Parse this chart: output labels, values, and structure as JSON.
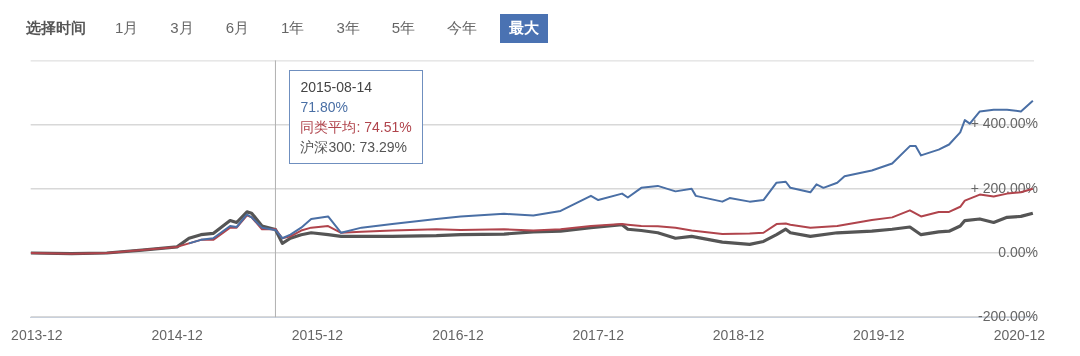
{
  "chart_data": {
    "type": "line",
    "title": "选择时间",
    "annotations": [
      "1月",
      "3月",
      "6月",
      "1年",
      "3年",
      "5年",
      "今年",
      "最大",
      {
        "text": "2015-08-14",
        "x": "2015-08-14"
      },
      "71.80%",
      "同类平均: 74.51%",
      "沪深300: 73.29%"
    ],
    "xlim": [
      "2013-11-15",
      "2021-01-08"
    ],
    "xticks": [
      "2013-12",
      "2014-12",
      "2015-12",
      "2016-12",
      "2017-12",
      "2018-12",
      "2019-12",
      "2020-12"
    ],
    "ylim": [
      -200,
      600
    ],
    "yticks": [
      {
        "value": -200,
        "label": "-200.00%"
      },
      {
        "value": 0,
        "label": "0.00%"
      },
      {
        "value": 200,
        "label": "+ 200.00%"
      },
      {
        "value": 400,
        "label": "+ 400.00%"
      }
    ],
    "grid": "y",
    "legend": false,
    "marker": "none",
    "line_style": "solid",
    "ref_lines": [
      {
        "axis": "x",
        "value": "2015-08-14",
        "color": "#b0b0b0"
      }
    ],
    "series": [
      {
        "color": "#4a6fa5",
        "x": [
          "2015-01-01",
          "2015-02-01",
          "2015-03-05",
          "2015-04-18",
          "2015-05-05",
          "2015-06-01",
          "2015-06-13",
          "2015-07-10",
          "2015-08-14",
          "2015-09-01",
          "2015-09-22",
          "2015-10-20",
          "2015-11-15",
          "2015-12-29",
          "2016-02-01",
          "2016-03-25",
          "2016-06-13",
          "2016-10-06",
          "2016-12-08",
          "2017-03-31",
          "2017-06-15",
          "2017-08-25",
          "2017-11-12",
          "2017-12-01",
          "2018-02-01",
          "2018-02-16",
          "2018-03-23",
          "2018-05-05",
          "2018-06-20",
          "2018-08-01",
          "2018-08-12",
          "2018-10-20",
          "2018-11-08",
          "2018-12-30",
          "2019-02-04",
          "2019-03-10",
          "2019-04-03",
          "2019-04-15",
          "2019-06-06",
          "2019-06-22",
          "2019-07-10",
          "2019-08-15",
          "2019-09-03",
          "2019-11-13",
          "2020-01-05",
          "2020-02-20",
          "2020-03-06",
          "2020-03-20",
          "2020-05-05",
          "2020-06-01",
          "2020-06-30",
          "2020-07-12",
          "2020-07-25",
          "2020-08-20",
          "2020-09-25",
          "2020-10-30",
          "2020-12-05",
          "2021-01-05"
        ],
        "values": [
          30,
          41,
          46,
          84,
          81,
          120,
          111,
          79,
          71.8,
          46,
          57,
          79,
          106,
          114,
          63,
          79,
          90,
          106,
          114,
          122,
          117,
          131,
          178,
          165,
          185,
          173,
          203,
          209,
          192,
          200,
          178,
          160,
          171,
          160,
          165,
          219,
          222,
          203,
          189,
          214,
          203,
          219,
          239,
          257,
          279,
          333,
          333,
          304,
          322,
          338,
          376,
          414,
          403,
          441,
          446,
          446,
          441,
          474
        ]
      },
      {
        "color": "#b0444c",
        "x": [
          "2013-11-15",
          "2014-03-01",
          "2014-06-01",
          "2014-09-01",
          "2014-12-01",
          "2015-01-01",
          "2015-02-01",
          "2015-03-05",
          "2015-04-18",
          "2015-05-05",
          "2015-06-01",
          "2015-06-13",
          "2015-07-10",
          "2015-08-14",
          "2015-09-01",
          "2015-09-22",
          "2015-10-20",
          "2015-11-15",
          "2015-12-29",
          "2016-02-01",
          "2016-03-25",
          "2016-06-13",
          "2016-10-06",
          "2016-12-08",
          "2017-03-31",
          "2017-06-15",
          "2017-08-25",
          "2017-11-12",
          "2018-02-01",
          "2018-02-16",
          "2018-03-23",
          "2018-05-05",
          "2018-06-20",
          "2018-08-01",
          "2018-10-20",
          "2018-12-30",
          "2019-02-04",
          "2019-03-10",
          "2019-04-03",
          "2019-04-15",
          "2019-06-06",
          "2019-08-15",
          "2019-11-13",
          "2020-01-05",
          "2020-02-20",
          "2020-03-20",
          "2020-05-05",
          "2020-06-01",
          "2020-06-30",
          "2020-07-12",
          "2020-08-20",
          "2020-09-25",
          "2020-10-30",
          "2020-12-05",
          "2021-01-05"
        ],
        "values": [
          0,
          -2,
          0,
          9,
          19,
          30,
          41,
          41,
          79,
          79,
          117,
          111,
          74,
          74.51,
          46,
          52,
          70,
          79,
          84,
          63,
          66,
          70,
          74,
          72,
          74,
          70,
          74,
          84,
          90,
          88,
          84,
          83,
          79,
          70,
          59,
          61,
          63,
          90,
          92,
          88,
          79,
          84,
          103,
          111,
          133,
          114,
          128,
          128,
          144,
          163,
          182,
          176,
          185,
          189,
          200
        ]
      },
      {
        "color": "#555555",
        "x": [
          "2013-11-15",
          "2014-03-01",
          "2014-06-01",
          "2014-09-01",
          "2014-12-01",
          "2015-01-01",
          "2015-02-01",
          "2015-03-05",
          "2015-04-18",
          "2015-05-05",
          "2015-06-01",
          "2015-06-13",
          "2015-07-10",
          "2015-08-14",
          "2015-09-01",
          "2015-09-22",
          "2015-10-20",
          "2015-11-15",
          "2015-12-29",
          "2016-02-01",
          "2016-03-25",
          "2016-06-13",
          "2016-10-06",
          "2016-12-08",
          "2017-03-31",
          "2017-06-15",
          "2017-08-25",
          "2017-11-12",
          "2018-02-01",
          "2018-02-16",
          "2018-03-23",
          "2018-05-05",
          "2018-06-20",
          "2018-08-01",
          "2018-10-20",
          "2018-12-30",
          "2019-02-04",
          "2019-03-10",
          "2019-04-03",
          "2019-04-15",
          "2019-06-06",
          "2019-08-15",
          "2019-11-13",
          "2020-01-05",
          "2020-02-20",
          "2020-03-20",
          "2020-05-05",
          "2020-06-01",
          "2020-06-30",
          "2020-07-12",
          "2020-08-20",
          "2020-09-25",
          "2020-10-30",
          "2020-12-05",
          "2021-01-05"
        ],
        "values": [
          0,
          -2,
          0,
          9,
          19,
          46,
          57,
          61,
          101,
          95,
          128,
          124,
          84,
          73.29,
          30,
          46,
          57,
          63,
          57,
          52,
          52,
          52,
          54,
          57,
          59,
          66,
          68,
          79,
          88,
          74,
          70,
          63,
          46,
          52,
          34,
          27,
          36,
          57,
          74,
          63,
          52,
          63,
          68,
          74,
          81,
          57,
          66,
          68,
          84,
          101,
          106,
          95,
          111,
          114,
          124
        ]
      }
    ]
  }
}
